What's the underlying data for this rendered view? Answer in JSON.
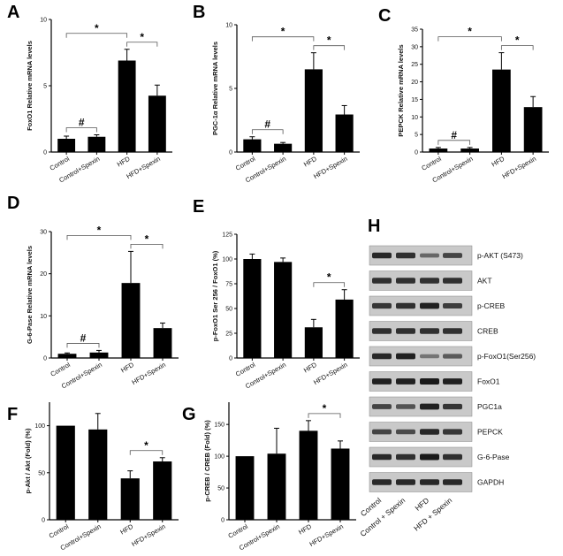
{
  "figure": {
    "panel_letters": [
      "A",
      "B",
      "C",
      "D",
      "E",
      "F",
      "G",
      "H"
    ]
  },
  "chart_data": [
    {
      "panel": "A",
      "type": "bar",
      "ylabel": "FoxO1 Relative mRNA levels",
      "categories": [
        "Control",
        "Control+Spexin",
        "HFD",
        "HFD+Spexin"
      ],
      "values": [
        1.0,
        1.15,
        6.9,
        4.25
      ],
      "errors": [
        0.2,
        0.15,
        0.85,
        0.8
      ],
      "ylim": [
        0,
        10
      ],
      "yticks": [
        0,
        5,
        10
      ],
      "annotations": [
        {
          "text": "#",
          "from": 0,
          "to": 1
        },
        {
          "text": "*",
          "from": 0,
          "to": 2
        },
        {
          "text": "*",
          "from": 2,
          "to": 3
        }
      ]
    },
    {
      "panel": "B",
      "type": "bar",
      "ylabel": "PGC-1α Relative mRNA levels",
      "categories": [
        "Control",
        "Control+Spexin",
        "HFD",
        "HFD+Spexin"
      ],
      "values": [
        1.0,
        0.65,
        6.5,
        2.95
      ],
      "errors": [
        0.2,
        0.1,
        1.3,
        0.7
      ],
      "ylim": [
        0,
        10
      ],
      "yticks": [
        0,
        5,
        10
      ],
      "annotations": [
        {
          "text": "#",
          "from": 0,
          "to": 1
        },
        {
          "text": "*",
          "from": 0,
          "to": 2
        },
        {
          "text": "*",
          "from": 2,
          "to": 3
        }
      ]
    },
    {
      "panel": "C",
      "type": "bar",
      "ylabel": "PEPCK Relative mRNA levels",
      "categories": [
        "Control",
        "Control+Spexin",
        "HFD",
        "HFD+Spexin"
      ],
      "values": [
        1.0,
        1.0,
        23.5,
        12.8
      ],
      "errors": [
        0.3,
        0.3,
        4.8,
        3.0
      ],
      "ylim": [
        0,
        35
      ],
      "yticks": [
        0,
        5,
        10,
        15,
        20,
        25,
        30,
        35
      ],
      "annotations": [
        {
          "text": "#",
          "from": 0,
          "to": 1
        },
        {
          "text": "*",
          "from": 0,
          "to": 2
        },
        {
          "text": "*",
          "from": 2,
          "to": 3
        }
      ]
    },
    {
      "panel": "D",
      "type": "bar",
      "ylabel": "G-6-Pase Relative mRNA levels",
      "categories": [
        "Control",
        "Control+Spexin",
        "HFD",
        "HFD+Spexin"
      ],
      "values": [
        1.0,
        1.3,
        17.8,
        7.1
      ],
      "errors": [
        0.2,
        0.5,
        7.5,
        1.2
      ],
      "ylim": [
        0,
        30
      ],
      "yticks": [
        0,
        10,
        20,
        30
      ],
      "annotations": [
        {
          "text": "#",
          "from": 0,
          "to": 1
        },
        {
          "text": "*",
          "from": 0,
          "to": 2
        },
        {
          "text": "*",
          "from": 2,
          "to": 3
        }
      ]
    },
    {
      "panel": "E",
      "type": "bar",
      "ylabel": "p-FoxO1 Ser 256 / FoxO1 (%)",
      "categories": [
        "Control",
        "Control+Spexin",
        "HFD",
        "HFD+Spexin"
      ],
      "values": [
        100,
        97,
        31,
        59
      ],
      "errors": [
        5,
        4,
        8,
        10
      ],
      "ylim": [
        0,
        125
      ],
      "yticks": [
        0,
        25,
        50,
        75,
        100,
        125
      ],
      "annotations": [
        {
          "text": "*",
          "from": 2,
          "to": 3
        }
      ]
    },
    {
      "panel": "F",
      "type": "bar",
      "ylabel": "p-Akt / Akt (Fold) (%)",
      "categories": [
        "Control",
        "Control+Spexin",
        "HFD",
        "HFD+Spexin"
      ],
      "values": [
        100,
        96,
        44,
        62
      ],
      "errors": [
        0,
        17,
        8,
        4
      ],
      "ylim": [
        0,
        125
      ],
      "yticks": [
        0,
        50,
        100
      ],
      "annotations": [
        {
          "text": "*",
          "from": 2,
          "to": 3
        }
      ]
    },
    {
      "panel": "G",
      "type": "bar",
      "ylabel": "p-CREB / CREB (Fold) (%)",
      "categories": [
        "Control",
        "Control+Spexin",
        "HFD",
        "HFD+Spexin"
      ],
      "values": [
        100,
        104,
        140,
        112
      ],
      "errors": [
        0,
        40,
        16,
        12
      ],
      "ylim": [
        0,
        185
      ],
      "yticks": [
        0,
        50,
        100,
        150
      ],
      "annotations": [
        {
          "text": "*",
          "from": 2,
          "to": 3
        }
      ]
    }
  ],
  "western_blot": {
    "panel": "H",
    "lanes": [
      "Control",
      "Control + Spexin",
      "HFD",
      "HFD + Spexin"
    ],
    "rows": [
      {
        "label": "p-AKT (S473)",
        "intensity": [
          0.9,
          0.85,
          0.45,
          0.7
        ]
      },
      {
        "label": "AKT",
        "intensity": [
          0.85,
          0.85,
          0.85,
          0.85
        ]
      },
      {
        "label": "p-CREB",
        "intensity": [
          0.8,
          0.85,
          0.95,
          0.75
        ]
      },
      {
        "label": "CREB",
        "intensity": [
          0.85,
          0.85,
          0.85,
          0.85
        ]
      },
      {
        "label": "p-FoxO1(Ser256)",
        "intensity": [
          0.9,
          0.95,
          0.35,
          0.55
        ]
      },
      {
        "label": "FoxO1",
        "intensity": [
          0.95,
          0.95,
          1.0,
          0.95
        ]
      },
      {
        "label": "PGC1a",
        "intensity": [
          0.7,
          0.6,
          0.95,
          0.8
        ]
      },
      {
        "label": "PEPCK",
        "intensity": [
          0.7,
          0.65,
          0.9,
          0.8
        ]
      },
      {
        "label": "G-6-Pase",
        "intensity": [
          0.9,
          0.85,
          1.0,
          0.85
        ]
      },
      {
        "label": "GAPDH",
        "intensity": [
          0.9,
          0.9,
          0.9,
          0.9
        ]
      }
    ]
  },
  "colors": {
    "bar": "#000000",
    "axis": "#000000",
    "blot_background": "#c9c9c9",
    "blot_band": "#1a1a1a"
  }
}
